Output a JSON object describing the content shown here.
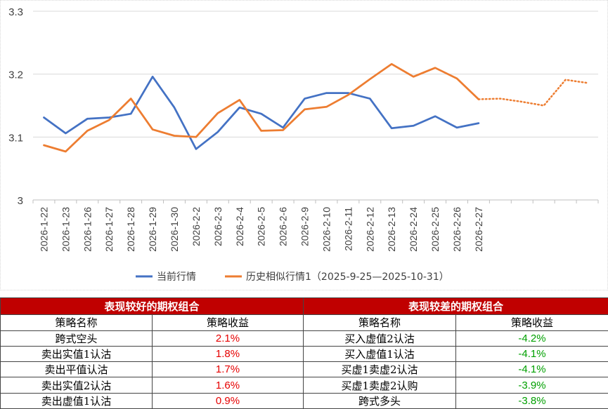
{
  "chart_data": {
    "type": "line",
    "categories": [
      "2026-1-22",
      "2026-1-23",
      "2026-1-26",
      "2026-1-27",
      "2026-1-28",
      "2026-1-29",
      "2026-1-30",
      "2026-2-2",
      "2026-2-3",
      "2026-2-4",
      "2026-2-5",
      "2026-2-6",
      "2026-2-9",
      "2026-2-10",
      "2026-2-11",
      "2026-2-12",
      "2026-2-13",
      "2026-2-24",
      "2026-2-25",
      "2026-2-26",
      "2026-2-27",
      "",
      "",
      "",
      "",
      ""
    ],
    "ylim": [
      3.0,
      3.3
    ],
    "yticks": [
      3,
      3.1,
      3.2,
      3.3
    ],
    "ytick_labels": [
      "3",
      "3.1",
      "3.2",
      "3.3"
    ],
    "grid": true,
    "legend_position": "bottom",
    "series": [
      {
        "name": "当前行情",
        "color": "#4472c4",
        "values": [
          3.131,
          3.106,
          3.129,
          3.131,
          3.137,
          3.196,
          3.147,
          3.081,
          3.108,
          3.147,
          3.137,
          3.115,
          3.161,
          3.17,
          3.17,
          3.161,
          3.114,
          3.118,
          3.133,
          3.115,
          3.122,
          null,
          null,
          null,
          null,
          null
        ]
      },
      {
        "name": "历史相似行情1（2025-9-25—2025-10-31）",
        "color": "#ed7d31",
        "values": [
          3.087,
          3.077,
          3.11,
          3.127,
          3.161,
          3.112,
          3.102,
          3.1,
          3.138,
          3.159,
          3.11,
          3.111,
          3.144,
          3.148,
          3.167,
          3.192,
          3.216,
          3.196,
          3.21,
          3.193,
          3.16,
          3.161,
          3.156,
          3.15,
          3.191,
          3.186
        ],
        "solid_until_index": 20
      }
    ]
  },
  "tables": {
    "good": {
      "title": "表现较好的期权组合",
      "col_name": "策略名称",
      "col_value": "策略收益",
      "rows": [
        {
          "name": "跨式空头",
          "value": "2.1%"
        },
        {
          "name": "卖出实值1认沽",
          "value": "1.8%"
        },
        {
          "name": "卖出平值认沽",
          "value": "1.7%"
        },
        {
          "name": "卖出实值2认沽",
          "value": "1.6%"
        },
        {
          "name": "卖出虚值1认沽",
          "value": "0.9%"
        }
      ]
    },
    "bad": {
      "title": "表现较差的期权组合",
      "col_name": "策略名称",
      "col_value": "策略收益",
      "rows": [
        {
          "name": "买入虚值2认沽",
          "value": "-4.2%"
        },
        {
          "name": "买入虚值1认沽",
          "value": "-4.1%"
        },
        {
          "name": "买虚1卖虚2认沽",
          "value": "-4.1%"
        },
        {
          "name": "买虚1卖虚2认购",
          "value": "-3.9%"
        },
        {
          "name": "跨式多头",
          "value": "-3.8%"
        }
      ]
    },
    "colors": {
      "header_bg": "#c00000",
      "positive": "#e60000",
      "negative": "#00a000"
    }
  }
}
